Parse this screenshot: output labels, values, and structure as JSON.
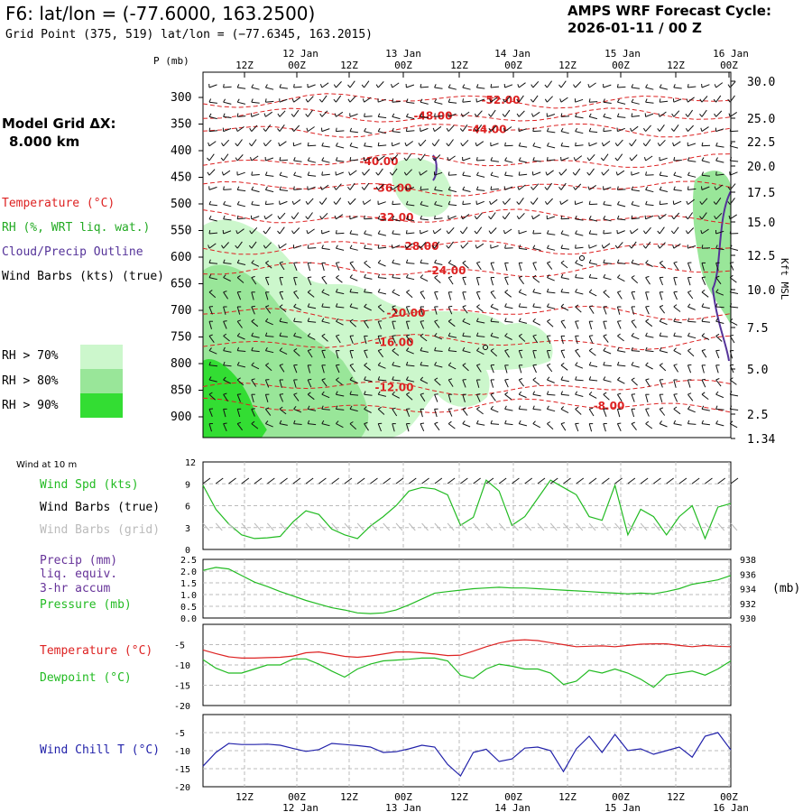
{
  "header": {
    "station": "F6:  lat/lon = (-77.6000, 163.2500)",
    "grid_point": "Grid Point (375, 519) lat/lon = (−77.6345, 163.2015)",
    "cycle_line1": "AMPS WRF Forecast Cycle:",
    "cycle_line2": "2026-01-11 / 00  Z",
    "model_grid_line1": "Model Grid ΔX:",
    "model_grid_line2": "8.000 km"
  },
  "legend": {
    "temperature": "Temperature (°C)",
    "rh": "RH (%, WRT liq. wat.)",
    "cloud": "Cloud/Precip Outline",
    "wind_barbs": "Wind Barbs (kts) (true)",
    "rh70": "RH > 70%",
    "rh80": "RH > 80%",
    "rh90": "RH > 90%"
  },
  "colors": {
    "temperature": "#dd2222",
    "rh70": "#ccf7cc",
    "rh80": "#99e699",
    "rh90": "#33dd33",
    "cloud": "#553399",
    "wind_spd": "#22bb22",
    "precip": "#663399",
    "pressure": "#22bb22",
    "dewpoint": "#22bb22",
    "wind_chill": "#2222aa",
    "grid_barbs": "#bbbbbb"
  },
  "time_axis": {
    "ticks_top": [
      "12Z",
      "00Z",
      "12Z",
      "00Z",
      "12Z",
      "00Z",
      "12Z",
      "00Z",
      "12Z",
      "00Z"
    ],
    "days": [
      "12 Jan",
      "13 Jan",
      "14 Jan",
      "15 Jan",
      "16 Jan"
    ]
  },
  "chart_data": [
    {
      "type": "contour",
      "panel": "cross-section",
      "xlabel": "",
      "ylabel": "P (mb)",
      "right_label": "Kft MSL",
      "pressure_ticks": [
        "300",
        "350",
        "400",
        "450",
        "500",
        "550",
        "600",
        "650",
        "700",
        "750",
        "800",
        "850",
        "900"
      ],
      "height_ticks": [
        "30.0",
        "25.0",
        "22.5",
        "20.0",
        "17.5",
        "15.0",
        "12.5",
        "10.0",
        "7.5",
        "5.0",
        "2.5",
        "1.34"
      ],
      "temperature_contours": [
        {
          "label": "-52.00",
          "pressure": 305
        },
        {
          "label": "-48.00",
          "pressure": 335
        },
        {
          "label": "-44.00",
          "pressure": 360
        },
        {
          "label": "-40.00",
          "pressure": 420
        },
        {
          "label": "-36.00",
          "pressure": 470
        },
        {
          "label": "-32.00",
          "pressure": 525
        },
        {
          "label": "-28.00",
          "pressure": 580
        },
        {
          "label": "-24.00",
          "pressure": 625
        },
        {
          "label": "-20.00",
          "pressure": 705
        },
        {
          "label": "-16.00",
          "pressure": 760
        },
        {
          "label": "-12.00",
          "pressure": 845
        },
        {
          "label": "-8.00",
          "pressure": 880
        }
      ]
    },
    {
      "type": "line",
      "panel": "wind",
      "title": "Wind at 10 m",
      "ylabel_lines": [
        "Wind Spd (kts)",
        "Wind Barbs (true)",
        "Wind Barbs (grid)"
      ],
      "yticks": [
        "12",
        "9",
        "6",
        "3",
        "0"
      ],
      "ylim": [
        0,
        12
      ],
      "series": [
        {
          "name": "Wind Spd (kts)",
          "values": [
            8.8,
            5.5,
            3.5,
            2.0,
            1.5,
            1.6,
            1.8,
            3.8,
            5.3,
            4.8,
            2.8,
            2.0,
            1.5,
            3.2,
            4.5,
            6.0,
            8.0,
            8.5,
            8.3,
            7.5,
            3.3,
            4.4,
            9.5,
            8.0,
            3.3,
            4.5,
            7.0,
            9.5,
            8.5,
            7.5,
            4.5,
            4.0,
            8.8,
            2.0,
            5.5,
            4.5,
            2.0,
            4.5,
            6.0,
            1.5,
            5.8,
            6.3
          ]
        }
      ]
    },
    {
      "type": "line",
      "panel": "precip-pressure",
      "ylabel_lines": [
        "Precip (mm)",
        "liq. equiv.",
        "3-hr accum",
        "Pressure (mb)"
      ],
      "yticks_left": [
        "2.5",
        "2.0",
        "1.5",
        "1.0",
        "0.5",
        "0.0"
      ],
      "yticks_right": [
        "938",
        "936",
        "934",
        "932",
        "930"
      ],
      "right_unit": "(mb)",
      "ylim_right": [
        930,
        938
      ],
      "series": [
        {
          "name": "Pressure (mb)",
          "values": [
            936.5,
            936.9,
            936.7,
            935.8,
            934.9,
            934.3,
            933.6,
            933.0,
            932.4,
            931.9,
            931.4,
            931.1,
            930.7,
            930.6,
            930.7,
            931.1,
            931.8,
            932.6,
            933.4,
            933.6,
            933.8,
            934.0,
            934.1,
            934.2,
            934.1,
            934.1,
            934.0,
            933.9,
            933.8,
            933.7,
            933.6,
            933.5,
            933.4,
            933.3,
            933.4,
            933.3,
            933.6,
            934.0,
            934.6,
            934.9,
            935.2,
            935.8
          ]
        }
      ]
    },
    {
      "type": "line",
      "panel": "temperature",
      "ylabel_lines": [
        "Temperature (°C)",
        "Dewpoint (°C)"
      ],
      "yticks": [
        "-5",
        "-10",
        "-15",
        "-20"
      ],
      "ylim": [
        -20,
        0
      ],
      "series": [
        {
          "name": "Temperature (°C)",
          "values": [
            -6.3,
            -7.2,
            -8.0,
            -8.3,
            -8.3,
            -8.2,
            -8.1,
            -7.8,
            -7.0,
            -6.8,
            -7.3,
            -7.9,
            -8.1,
            -7.8,
            -7.3,
            -6.8,
            -6.8,
            -7.0,
            -7.3,
            -7.7,
            -7.6,
            -6.6,
            -5.5,
            -4.6,
            -4.0,
            -3.8,
            -4.0,
            -4.5,
            -5.0,
            -5.5,
            -5.4,
            -5.3,
            -5.5,
            -5.2,
            -4.9,
            -4.8,
            -4.8,
            -5.2,
            -5.5,
            -5.2,
            -5.4,
            -5.5
          ]
        },
        {
          "name": "Dewpoint (°C)",
          "values": [
            -8.7,
            -10.8,
            -12.0,
            -12.0,
            -11.0,
            -10.0,
            -10.0,
            -8.5,
            -8.5,
            -9.8,
            -11.5,
            -13.0,
            -11.0,
            -9.8,
            -9.0,
            -8.8,
            -8.6,
            -8.3,
            -8.3,
            -9.0,
            -12.5,
            -13.3,
            -11.0,
            -9.8,
            -10.3,
            -11.0,
            -11.0,
            -12.0,
            -14.8,
            -14.0,
            -11.3,
            -12.0,
            -11.0,
            -12.0,
            -13.5,
            -15.5,
            -12.5,
            -12.0,
            -11.5,
            -12.5,
            -11.0,
            -9.0
          ]
        }
      ]
    },
    {
      "type": "line",
      "panel": "wind-chill",
      "ylabel_lines": [
        "Wind Chill T (°C)"
      ],
      "yticks": [
        "-5",
        "-10",
        "-15",
        "-20"
      ],
      "ylim": [
        -20,
        0
      ],
      "series": [
        {
          "name": "Wind Chill T (°C)",
          "values": [
            -14.3,
            -10.5,
            -8.0,
            -8.3,
            -8.3,
            -8.2,
            -8.5,
            -9.4,
            -10.2,
            -9.7,
            -8.0,
            -8.3,
            -8.6,
            -9.0,
            -10.5,
            -10.3,
            -9.5,
            -8.5,
            -9.0,
            -13.8,
            -17.0,
            -10.5,
            -9.6,
            -13.0,
            -12.3,
            -9.3,
            -9.0,
            -10.0,
            -15.8,
            -9.5,
            -6.0,
            -10.5,
            -5.5,
            -10.0,
            -9.5,
            -11.0,
            -10.0,
            -9.0,
            -11.8,
            -6.0,
            -5.0,
            -9.8
          ]
        }
      ]
    }
  ]
}
